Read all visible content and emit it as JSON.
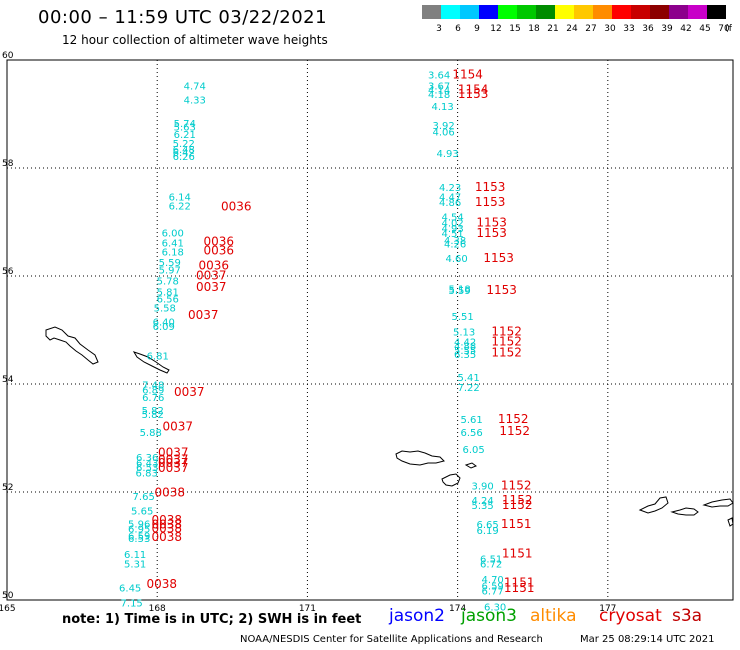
{
  "header": {
    "title": "00:00 – 11:59 UTC 03/22/2021",
    "subtitle": "12 hour collection of altimeter wave heights"
  },
  "colorbar": {
    "unit_label": "(ft)",
    "labels": [
      "3",
      "6",
      "9",
      "12",
      "15",
      "18",
      "21",
      "24",
      "27",
      "30",
      "33",
      "36",
      "39",
      "42",
      "45",
      "70"
    ],
    "colors": [
      "#808080",
      "#00ffff",
      "#00c8ff",
      "#0000ff",
      "#00ff00",
      "#00c800",
      "#008c00",
      "#ffff00",
      "#ffc800",
      "#ff8c00",
      "#ff0000",
      "#c80000",
      "#8c0000",
      "#8c008c",
      "#c800c8",
      "#000000"
    ]
  },
  "map": {
    "lon_ticks": [
      "165",
      "168",
      "171",
      "174",
      "177"
    ],
    "lat_ticks": [
      "60",
      "58",
      "56",
      "54",
      "52",
      "50"
    ],
    "lon_range": [
      165,
      179.5
    ],
    "lat_range": [
      50,
      60
    ],
    "swh_color": "#00cccc",
    "time_color": "#e00000"
  },
  "tracks": [
    {
      "id": "track-a",
      "swh": [
        {
          "lon": 168.75,
          "lat": 59.53,
          "v": "4.74"
        },
        {
          "lon": 168.75,
          "lat": 59.27,
          "v": "4.33"
        },
        {
          "lon": 168.55,
          "lat": 58.83,
          "v": "5.74"
        },
        {
          "lon": 168.55,
          "lat": 58.77,
          "v": "5.63"
        },
        {
          "lon": 168.55,
          "lat": 58.63,
          "v": "6.21"
        },
        {
          "lon": 168.53,
          "lat": 58.46,
          "v": "5.22"
        },
        {
          "lon": 168.53,
          "lat": 58.35,
          "v": "6.48"
        },
        {
          "lon": 168.53,
          "lat": 58.3,
          "v": "6.42"
        },
        {
          "lon": 168.53,
          "lat": 58.22,
          "v": "6.26"
        },
        {
          "lon": 168.45,
          "lat": 57.47,
          "v": "6.14"
        },
        {
          "lon": 168.45,
          "lat": 57.31,
          "v": "6.22"
        },
        {
          "lon": 168.31,
          "lat": 56.81,
          "v": "6.00"
        },
        {
          "lon": 168.31,
          "lat": 56.62,
          "v": "6.41"
        },
        {
          "lon": 168.31,
          "lat": 56.45,
          "v": "6.18"
        },
        {
          "lon": 168.25,
          "lat": 56.26,
          "v": "5.59"
        },
        {
          "lon": 168.25,
          "lat": 56.12,
          "v": "5.97"
        },
        {
          "lon": 168.21,
          "lat": 55.92,
          "v": "5.78"
        },
        {
          "lon": 168.21,
          "lat": 55.71,
          "v": "5.81"
        },
        {
          "lon": 168.21,
          "lat": 55.58,
          "v": "6.56"
        },
        {
          "lon": 168.15,
          "lat": 55.42,
          "v": "5.58"
        },
        {
          "lon": 168.13,
          "lat": 55.16,
          "v": "6.40"
        },
        {
          "lon": 168.13,
          "lat": 55.07,
          "v": "6.09"
        },
        {
          "lon": 168.01,
          "lat": 54.53,
          "v": "6.81"
        },
        {
          "lon": 167.92,
          "lat": 53.99,
          "v": "7.48"
        },
        {
          "lon": 167.92,
          "lat": 53.9,
          "v": "6.89"
        },
        {
          "lon": 167.92,
          "lat": 53.76,
          "v": "6.76"
        },
        {
          "lon": 167.91,
          "lat": 53.52,
          "v": "5.82"
        },
        {
          "lon": 167.91,
          "lat": 53.44,
          "v": "5.82"
        },
        {
          "lon": 167.87,
          "lat": 53.11,
          "v": "5.88"
        },
        {
          "lon": 167.8,
          "lat": 52.65,
          "v": "6.36"
        },
        {
          "lon": 167.8,
          "lat": 52.55,
          "v": "6.43"
        },
        {
          "lon": 167.8,
          "lat": 52.46,
          "v": "6.53"
        },
        {
          "lon": 167.79,
          "lat": 52.36,
          "v": "6.83"
        },
        {
          "lon": 167.73,
          "lat": 51.93,
          "v": "7.65"
        },
        {
          "lon": 167.7,
          "lat": 51.66,
          "v": "5.65"
        },
        {
          "lon": 167.64,
          "lat": 51.42,
          "v": "5.96"
        },
        {
          "lon": 167.64,
          "lat": 51.32,
          "v": "6.95"
        },
        {
          "lon": 167.64,
          "lat": 51.19,
          "v": "6.59"
        },
        {
          "lon": 167.64,
          "lat": 51.15,
          "v": "6.53"
        },
        {
          "lon": 167.56,
          "lat": 50.85,
          "v": "6.11"
        },
        {
          "lon": 167.56,
          "lat": 50.68,
          "v": "5.31"
        },
        {
          "lon": 167.46,
          "lat": 50.23,
          "v": "6.45"
        },
        {
          "lon": 167.49,
          "lat": 49.95,
          "v": "7.15"
        }
      ],
      "times": [
        {
          "lon": 169.58,
          "lat": 57.29,
          "v": "0036"
        },
        {
          "lon": 169.23,
          "lat": 56.64,
          "v": "0036"
        },
        {
          "lon": 169.23,
          "lat": 56.47,
          "v": "0036"
        },
        {
          "lon": 169.13,
          "lat": 56.19,
          "v": "0036"
        },
        {
          "lon": 169.08,
          "lat": 56.01,
          "v": "0037"
        },
        {
          "lon": 169.08,
          "lat": 55.8,
          "v": "0037"
        },
        {
          "lon": 168.92,
          "lat": 55.28,
          "v": "0037"
        },
        {
          "lon": 168.64,
          "lat": 53.85,
          "v": "0037"
        },
        {
          "lon": 168.41,
          "lat": 53.21,
          "v": "0037"
        },
        {
          "lon": 168.32,
          "lat": 52.73,
          "v": "0037"
        },
        {
          "lon": 168.32,
          "lat": 52.6,
          "v": "0037"
        },
        {
          "lon": 168.32,
          "lat": 52.54,
          "v": "0037"
        },
        {
          "lon": 168.32,
          "lat": 52.44,
          "v": "0037"
        },
        {
          "lon": 168.25,
          "lat": 51.99,
          "v": "0038"
        },
        {
          "lon": 168.19,
          "lat": 51.48,
          "v": "0038"
        },
        {
          "lon": 168.19,
          "lat": 51.4,
          "v": "0038"
        },
        {
          "lon": 168.19,
          "lat": 51.32,
          "v": "0038"
        },
        {
          "lon": 168.19,
          "lat": 51.17,
          "v": "0038"
        },
        {
          "lon": 168.09,
          "lat": 50.3,
          "v": "0038"
        }
      ]
    },
    {
      "id": "track-b",
      "swh": [
        {
          "lon": 173.63,
          "lat": 59.73,
          "v": "3.64"
        },
        {
          "lon": 173.63,
          "lat": 59.53,
          "v": "3.67"
        },
        {
          "lon": 173.63,
          "lat": 59.45,
          "v": "4.14"
        },
        {
          "lon": 173.63,
          "lat": 59.37,
          "v": "4.18"
        },
        {
          "lon": 173.7,
          "lat": 59.15,
          "v": "4.13"
        },
        {
          "lon": 173.72,
          "lat": 58.8,
          "v": "3.92"
        },
        {
          "lon": 173.72,
          "lat": 58.68,
          "v": "4.06"
        },
        {
          "lon": 173.8,
          "lat": 58.28,
          "v": "4.93"
        },
        {
          "lon": 173.85,
          "lat": 57.65,
          "v": "4.23"
        },
        {
          "lon": 173.85,
          "lat": 57.47,
          "v": "4.47"
        },
        {
          "lon": 173.85,
          "lat": 57.37,
          "v": "4.86"
        },
        {
          "lon": 173.9,
          "lat": 57.1,
          "v": "4.54"
        },
        {
          "lon": 173.9,
          "lat": 56.99,
          "v": "4.02"
        },
        {
          "lon": 173.9,
          "lat": 56.89,
          "v": "4.93"
        },
        {
          "lon": 173.9,
          "lat": 56.8,
          "v": "4.51"
        },
        {
          "lon": 173.95,
          "lat": 56.67,
          "v": "4.38"
        },
        {
          "lon": 173.95,
          "lat": 56.6,
          "v": "4.26"
        },
        {
          "lon": 173.98,
          "lat": 56.33,
          "v": "4.60"
        },
        {
          "lon": 174.04,
          "lat": 55.77,
          "v": "5.18"
        },
        {
          "lon": 174.04,
          "lat": 55.74,
          "v": "5.59"
        },
        {
          "lon": 174.1,
          "lat": 55.26,
          "v": "5.51"
        },
        {
          "lon": 174.13,
          "lat": 54.97,
          "v": "5.13"
        },
        {
          "lon": 174.15,
          "lat": 54.79,
          "v": "4.42"
        },
        {
          "lon": 174.15,
          "lat": 54.71,
          "v": "4.88"
        },
        {
          "lon": 174.15,
          "lat": 54.63,
          "v": "5.55"
        },
        {
          "lon": 174.15,
          "lat": 54.56,
          "v": "6.35"
        },
        {
          "lon": 174.22,
          "lat": 54.13,
          "v": "5.41"
        },
        {
          "lon": 174.22,
          "lat": 53.94,
          "v": "7.22"
        },
        {
          "lon": 174.28,
          "lat": 53.35,
          "v": "5.61"
        },
        {
          "lon": 174.28,
          "lat": 53.11,
          "v": "6.56"
        },
        {
          "lon": 174.32,
          "lat": 52.8,
          "v": "6.05"
        },
        {
          "lon": 174.5,
          "lat": 52.12,
          "v": "3.90"
        },
        {
          "lon": 174.5,
          "lat": 51.85,
          "v": "4.24"
        },
        {
          "lon": 174.5,
          "lat": 51.76,
          "v": "5.35"
        },
        {
          "lon": 174.6,
          "lat": 51.41,
          "v": "6.65"
        },
        {
          "lon": 174.6,
          "lat": 51.3,
          "v": "6.19"
        },
        {
          "lon": 174.67,
          "lat": 50.77,
          "v": "6.51"
        },
        {
          "lon": 174.67,
          "lat": 50.68,
          "v": "6.72"
        },
        {
          "lon": 174.7,
          "lat": 50.39,
          "v": "4.70"
        },
        {
          "lon": 174.7,
          "lat": 50.27,
          "v": "6.59"
        },
        {
          "lon": 174.7,
          "lat": 50.18,
          "v": "6.77"
        },
        {
          "lon": 174.75,
          "lat": 49.88,
          "v": "6.30"
        }
      ],
      "times": [
        {
          "lon": 174.2,
          "lat": 59.73,
          "v": "1154"
        },
        {
          "lon": 174.31,
          "lat": 59.45,
          "v": "1154"
        },
        {
          "lon": 174.31,
          "lat": 59.37,
          "v": "1153"
        },
        {
          "lon": 174.65,
          "lat": 57.65,
          "v": "1153"
        },
        {
          "lon": 174.65,
          "lat": 57.37,
          "v": "1153"
        },
        {
          "lon": 174.68,
          "lat": 56.99,
          "v": "1153"
        },
        {
          "lon": 174.68,
          "lat": 56.8,
          "v": "1153"
        },
        {
          "lon": 174.82,
          "lat": 56.33,
          "v": "1153"
        },
        {
          "lon": 174.88,
          "lat": 55.74,
          "v": "1153"
        },
        {
          "lon": 174.98,
          "lat": 54.97,
          "v": "1152"
        },
        {
          "lon": 174.98,
          "lat": 54.79,
          "v": "1152"
        },
        {
          "lon": 174.98,
          "lat": 54.58,
          "v": "1152"
        },
        {
          "lon": 175.11,
          "lat": 53.35,
          "v": "1152"
        },
        {
          "lon": 175.14,
          "lat": 53.13,
          "v": "1152"
        },
        {
          "lon": 175.17,
          "lat": 52.12,
          "v": "1152"
        },
        {
          "lon": 175.19,
          "lat": 51.85,
          "v": "1152"
        },
        {
          "lon": 175.19,
          "lat": 51.76,
          "v": "1152"
        },
        {
          "lon": 175.17,
          "lat": 51.41,
          "v": "1151"
        },
        {
          "lon": 175.19,
          "lat": 50.86,
          "v": "1151"
        },
        {
          "lon": 175.23,
          "lat": 50.32,
          "v": "1151"
        },
        {
          "lon": 175.23,
          "lat": 50.22,
          "v": "1151"
        }
      ]
    }
  ],
  "footer": {
    "note": "note:  1) Time is in UTC;  2) SWH is in feet",
    "legend": [
      {
        "label": "jason2",
        "color": "#0000ff"
      },
      {
        "label": "jason3",
        "color": "#00a000"
      },
      {
        "label": "altika",
        "color": "#ff8c00"
      },
      {
        "label": "cryosat",
        "color": "#e00000"
      },
      {
        "label": "s3a",
        "color": "#c00000"
      }
    ],
    "credit": "NOAA/NESDIS Center for Satellite Applications and Research",
    "timestamp": "Mar 25 08:29:14 UTC 2021"
  }
}
